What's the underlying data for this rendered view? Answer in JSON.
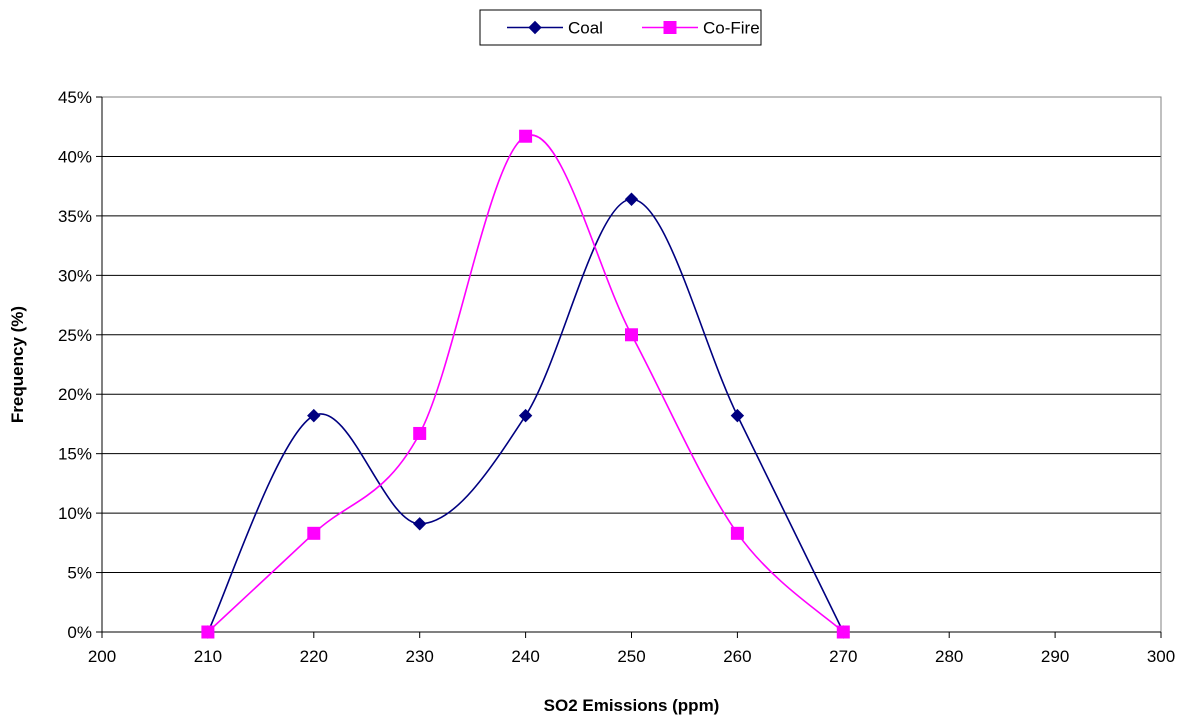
{
  "chart_data": {
    "type": "line",
    "title": "",
    "xlabel": "SO2 Emissions (ppm)",
    "ylabel": "Frequency (%)",
    "xlim": [
      200,
      300
    ],
    "ylim": [
      0,
      45
    ],
    "x_ticks": [
      "200",
      "210",
      "220",
      "230",
      "240",
      "250",
      "260",
      "270",
      "280",
      "290",
      "300"
    ],
    "y_ticks": [
      "0%",
      "5%",
      "10%",
      "15%",
      "20%",
      "25%",
      "30%",
      "35%",
      "40%",
      "45%"
    ],
    "grid": "horizontal",
    "smoothed": true,
    "legend_position": "top-center",
    "series": [
      {
        "name": "Coal",
        "color": "#000080",
        "marker": "diamond",
        "x": [
          210,
          220,
          230,
          240,
          250,
          260,
          270
        ],
        "values": [
          0,
          18.2,
          9.1,
          18.2,
          36.4,
          18.2,
          0
        ]
      },
      {
        "name": "Co-Fire",
        "color": "#ff00ff",
        "marker": "square",
        "x": [
          210,
          220,
          230,
          240,
          250,
          260,
          270
        ],
        "values": [
          0,
          8.3,
          16.7,
          41.7,
          25.0,
          8.3,
          0
        ]
      }
    ]
  }
}
